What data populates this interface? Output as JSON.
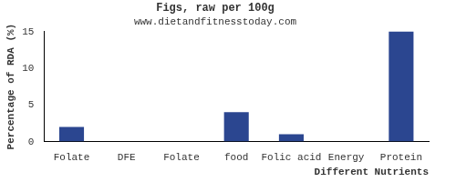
{
  "chart_data": {
    "type": "bar",
    "title": "Figs, raw per 100g",
    "subtitle": "www.dietandfitnesstoday.com",
    "x_label": "Different Nutrients",
    "y_label": "Percentage of RDA (%)",
    "categories": [
      "Folate",
      "DFE",
      "Folate",
      "food",
      "Folic acid",
      "Energy",
      "Protein"
    ],
    "values": [
      2,
      0,
      0,
      4,
      1,
      0,
      15
    ],
    "color": "#2b4690",
    "ylim": [
      0,
      15
    ],
    "yticks": [
      0,
      5,
      10,
      15
    ],
    "grid": false
  }
}
